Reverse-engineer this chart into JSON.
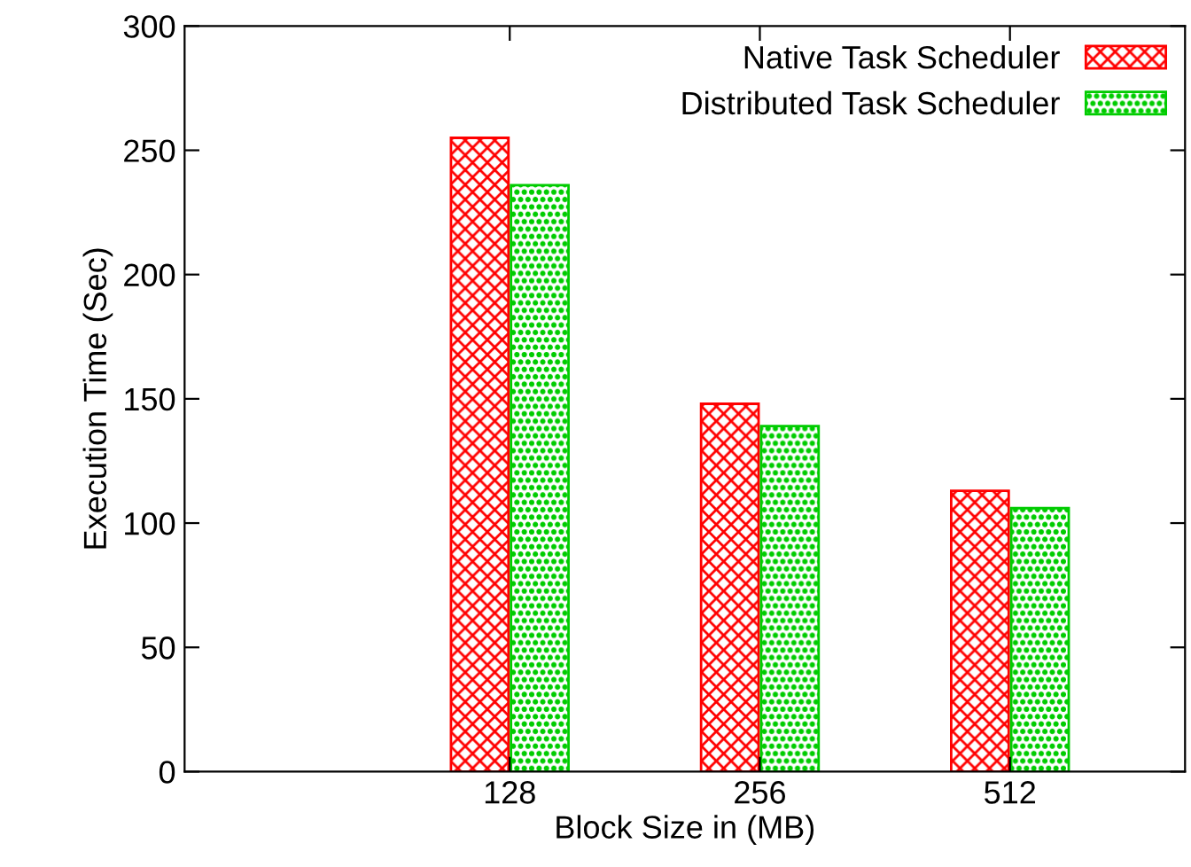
{
  "chart_data": {
    "type": "bar",
    "xlabel": "Block Size in (MB)",
    "ylabel": "Execution Time (Sec)",
    "categories": [
      "128",
      "256",
      "512"
    ],
    "series": [
      {
        "name": "Native Task Scheduler",
        "color": "#ff0000",
        "values": [
          255,
          148,
          113
        ]
      },
      {
        "name": "Distributed Task Scheduler",
        "color": "#00cc00",
        "values": [
          236,
          139,
          106
        ]
      }
    ],
    "ylim": [
      0,
      300
    ],
    "yticks": [
      0,
      50,
      100,
      150,
      200,
      250,
      300
    ],
    "grid": false,
    "legend": "top right"
  }
}
